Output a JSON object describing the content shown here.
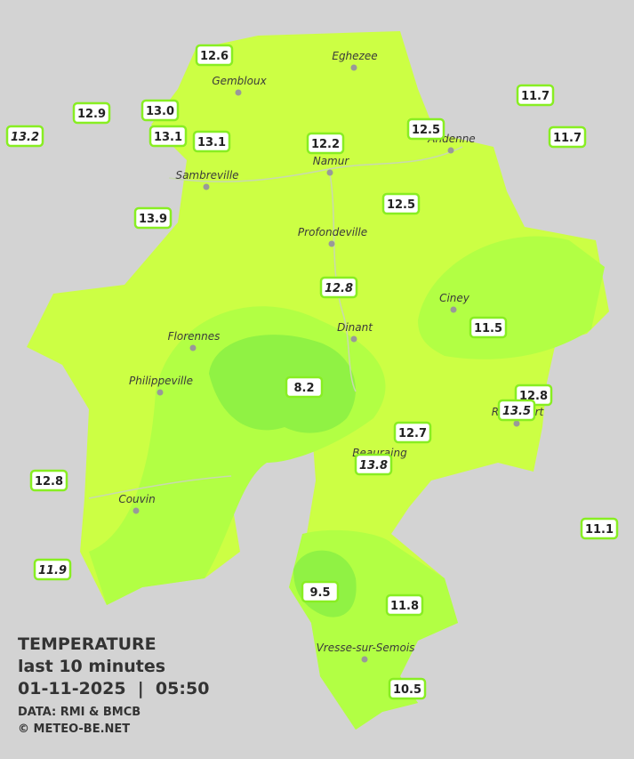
{
  "cities": [
    {
      "name": "Eghezee"
    },
    {
      "name": "Gembloux"
    },
    {
      "name": "Andenne"
    },
    {
      "name": "Namur"
    },
    {
      "name": "Sambreville"
    },
    {
      "name": "Profondeville"
    },
    {
      "name": "Ciney"
    },
    {
      "name": "Dinant"
    },
    {
      "name": "Florennes"
    },
    {
      "name": "Philippeville"
    },
    {
      "name": "Rochefort"
    },
    {
      "name": "Beauraing"
    },
    {
      "name": "Couvin"
    },
    {
      "name": "Vresse-sur-Semois"
    }
  ],
  "stations": [
    {
      "value": "12.6",
      "italic": false
    },
    {
      "value": "12.9",
      "italic": false
    },
    {
      "value": "13.0",
      "italic": false
    },
    {
      "value": "13.2",
      "italic": true
    },
    {
      "value": "13.1",
      "italic": false
    },
    {
      "value": "13.1",
      "italic": false
    },
    {
      "value": "12.2",
      "italic": false
    },
    {
      "value": "12.5",
      "italic": false
    },
    {
      "value": "11.7",
      "italic": false
    },
    {
      "value": "11.7",
      "italic": false
    },
    {
      "value": "13.9",
      "italic": false
    },
    {
      "value": "12.5",
      "italic": false
    },
    {
      "value": "12.8",
      "italic": true
    },
    {
      "value": "11.5",
      "italic": false
    },
    {
      "value": "8.2",
      "italic": false
    },
    {
      "value": "12.8",
      "italic": false
    },
    {
      "value": "13.5",
      "italic": true
    },
    {
      "value": "12.7",
      "italic": false
    },
    {
      "value": "13.8",
      "italic": true
    },
    {
      "value": "12.8",
      "italic": false
    },
    {
      "value": "11.1",
      "italic": false
    },
    {
      "value": "11.9",
      "italic": true
    },
    {
      "value": "9.5",
      "italic": false
    },
    {
      "value": "11.8",
      "italic": false
    },
    {
      "value": "10.5",
      "italic": false
    }
  ],
  "legend": {
    "title": "TEMPERATURE",
    "period": "last 10 minutes",
    "datetime": "01-11-2025  |  05:50",
    "source": "DATA: RMI & BMCB",
    "copyright": "© METEO-BE.NET"
  }
}
